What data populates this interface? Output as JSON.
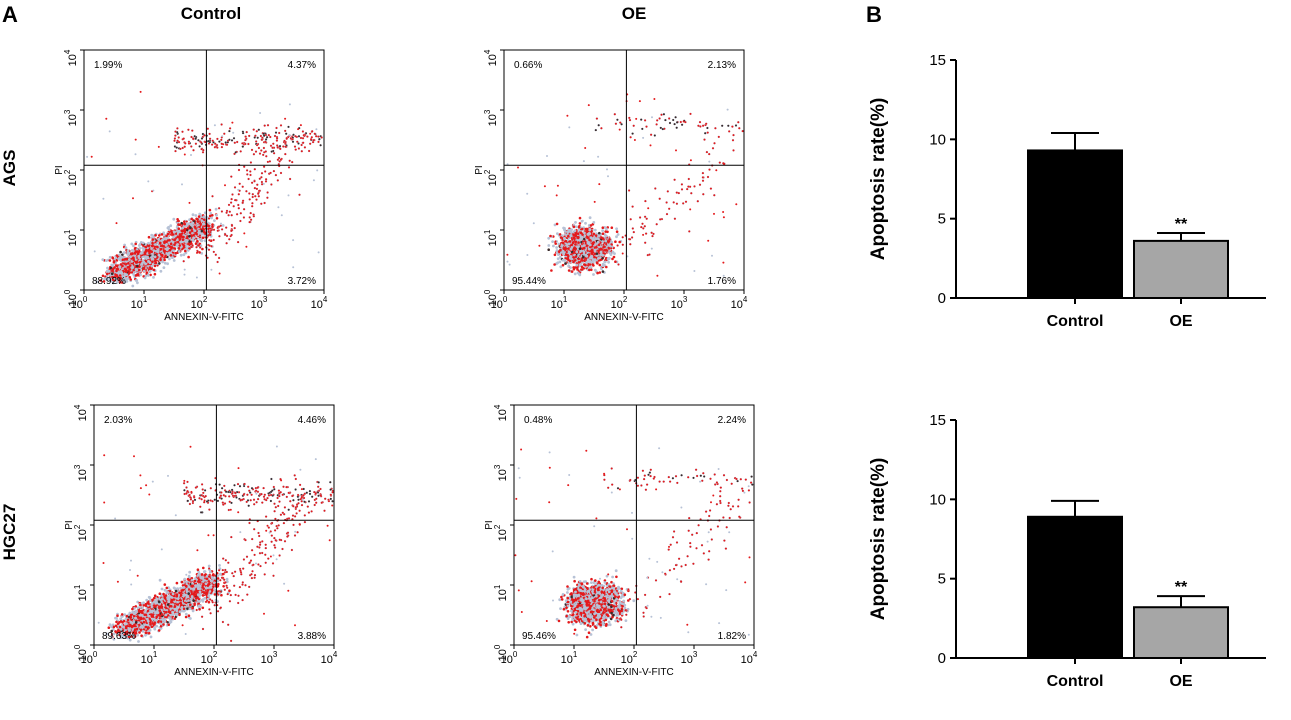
{
  "panels": {
    "a_label": "A",
    "b_label": "B"
  },
  "columns": [
    "Control",
    "OE"
  ],
  "rows": [
    "AGS",
    "HGC27"
  ],
  "flow_axis": {
    "xlabel": "ANNEXIN-V-FITC",
    "ylabel": "PI",
    "ticks": [
      "10",
      "10",
      "10",
      "10",
      "10"
    ],
    "exps": [
      "0",
      "1",
      "2",
      "3",
      "4"
    ]
  },
  "colors": {
    "dots": "#e41a1c",
    "halo": "#b7c2d6",
    "dark": "#3a2a2a",
    "bar_control": "#000000",
    "bar_oe": "#a6a6a6"
  },
  "chart_data": [
    {
      "type": "scatter",
      "panel": "AGS-Control",
      "quadrants": {
        "ul": "1.99%",
        "ur": "4.37%",
        "ll": "88.92%",
        "lr": "3.72%"
      }
    },
    {
      "type": "scatter",
      "panel": "AGS-OE",
      "quadrants": {
        "ul": "0.66%",
        "ur": "2.13%",
        "ll": "95.44%",
        "lr": "1.76%"
      }
    },
    {
      "type": "scatter",
      "panel": "HGC27-Control",
      "quadrants": {
        "ul": "2.03%",
        "ur": "4.46%",
        "ll": "89.63%",
        "lr": "3.88%"
      }
    },
    {
      "type": "scatter",
      "panel": "HGC27-OE",
      "quadrants": {
        "ul": "0.48%",
        "ur": "2.24%",
        "ll": "95.46%",
        "lr": "1.82%"
      }
    },
    {
      "type": "bar",
      "title": "AGS",
      "ylabel": "Apoptosis rate(%)",
      "ylim": [
        0,
        15
      ],
      "yticks": [
        "0",
        "5",
        "10",
        "15"
      ],
      "categories": [
        "Control",
        "OE"
      ],
      "values": [
        9.3,
        3.6
      ],
      "errors": [
        1.1,
        0.5
      ],
      "significance": [
        "",
        "**"
      ]
    },
    {
      "type": "bar",
      "title": "HGC27",
      "ylabel": "Apoptosis rate(%)",
      "ylim": [
        0,
        15
      ],
      "yticks": [
        "0",
        "5",
        "10",
        "15"
      ],
      "categories": [
        "Control",
        "OE"
      ],
      "values": [
        8.9,
        3.2
      ],
      "errors": [
        1.0,
        0.7
      ],
      "significance": [
        "",
        "**"
      ]
    }
  ]
}
